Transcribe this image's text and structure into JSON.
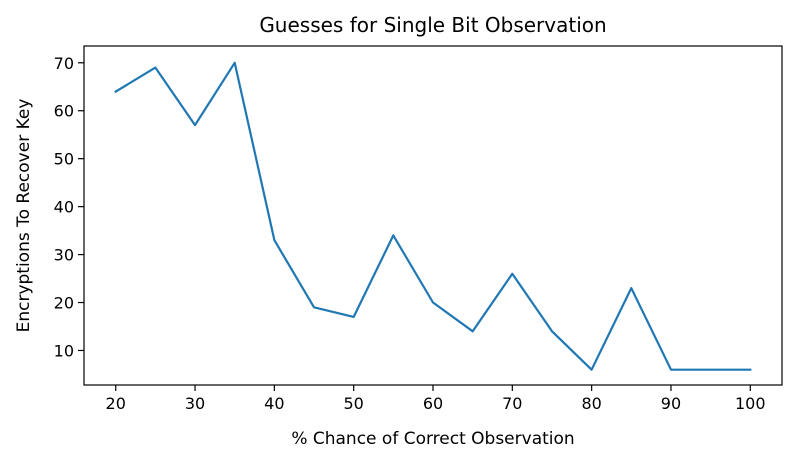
{
  "chart_data": {
    "type": "line",
    "title": "Guesses for Single Bit Observation",
    "xlabel": "% Chance of Correct Observation",
    "ylabel": "Encryptions To Recover Key",
    "x": [
      20,
      25,
      30,
      35,
      40,
      45,
      50,
      55,
      60,
      65,
      70,
      75,
      80,
      85,
      90,
      95,
      100
    ],
    "series": [
      {
        "values": [
          64,
          69,
          57,
          70,
          33,
          19,
          17,
          34,
          20,
          14,
          26,
          14,
          6,
          23,
          6,
          6,
          6
        ],
        "color": "#1f77b4"
      }
    ],
    "xlim": [
      16,
      104
    ],
    "ylim": [
      2.8,
      73.5
    ],
    "xticks": [
      "20",
      "30",
      "40",
      "50",
      "60",
      "70",
      "80",
      "90",
      "100"
    ],
    "yticks": [
      "10",
      "20",
      "30",
      "40",
      "50",
      "60",
      "70"
    ],
    "grid": false,
    "legend": "none"
  }
}
